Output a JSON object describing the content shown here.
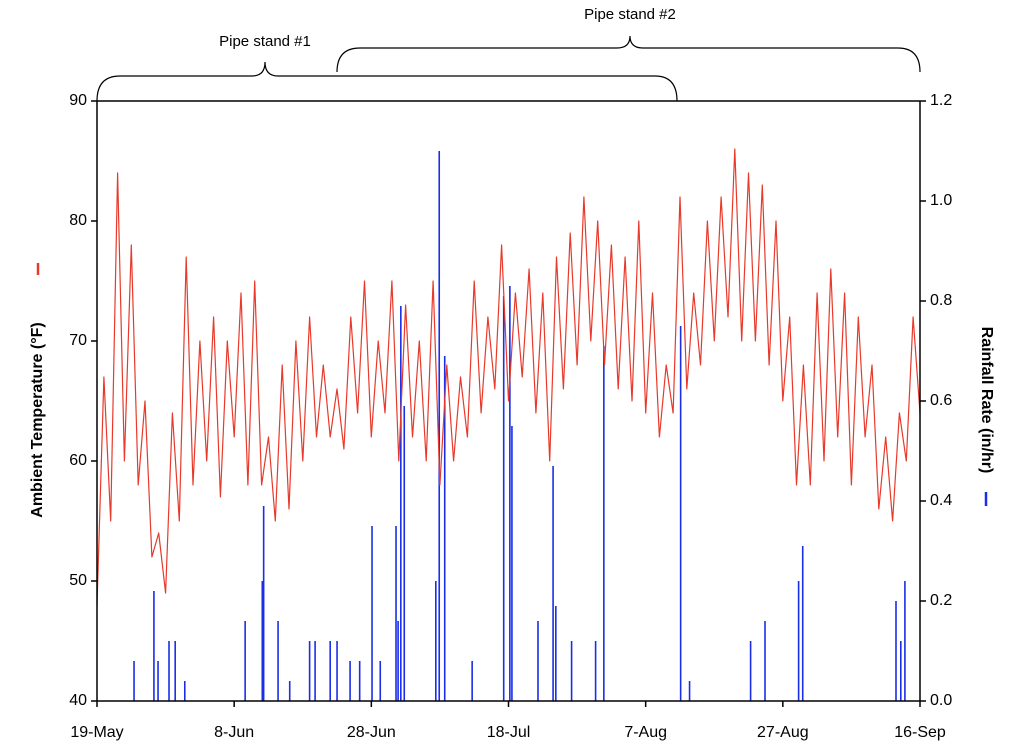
{
  "chart_data": {
    "type": "line",
    "annotations": [
      "Pipe stand #1",
      "Pipe stand #2"
    ],
    "ylabel": "Ambient Temperature (°F)",
    "y2label": "Rainfall Rate (in/hr)",
    "xlim": [
      0,
      120
    ],
    "xticks": [
      {
        "value": 0,
        "label": "19-May"
      },
      {
        "value": 20,
        "label": "8-Jun"
      },
      {
        "value": 40,
        "label": "28-Jun"
      },
      {
        "value": 60,
        "label": "18-Jul"
      },
      {
        "value": 80,
        "label": "7-Aug"
      },
      {
        "value": 100,
        "label": "27-Aug"
      },
      {
        "value": 120,
        "label": "16-Sep"
      }
    ],
    "ylim": [
      40,
      90
    ],
    "yticks": [
      40,
      50,
      60,
      70,
      80,
      90
    ],
    "y2lim": [
      0,
      1.2
    ],
    "y2ticks": [
      {
        "value": 0,
        "label": "0.0"
      },
      0.2,
      0.4,
      0.6,
      0.8,
      {
        "value": 1,
        "label": "1.0"
      },
      1.2
    ],
    "series": [
      {
        "name": "Ambient Temperature",
        "color": "#e8392a",
        "kind": "line",
        "x": [
          0,
          1,
          2,
          3,
          4,
          5,
          6,
          7,
          8,
          9,
          10,
          11,
          12,
          13,
          14,
          15,
          16,
          17,
          18,
          19,
          20,
          21,
          22,
          23,
          24,
          25,
          26,
          27,
          28,
          29,
          30,
          31,
          32,
          33,
          34,
          35,
          36,
          37,
          38,
          39,
          40,
          41,
          42,
          43,
          44,
          45,
          46,
          47,
          48,
          49,
          50,
          51,
          52,
          53,
          54,
          55,
          56,
          57,
          58,
          59,
          60,
          61,
          62,
          63,
          64,
          65,
          66,
          67,
          68,
          69,
          70,
          71,
          72,
          73,
          74,
          75,
          76,
          77,
          78,
          79,
          80,
          81,
          82,
          83,
          84,
          85,
          86,
          87,
          88,
          89,
          90,
          91,
          92,
          93,
          94,
          95,
          96,
          97,
          98,
          99,
          100,
          101,
          102,
          103,
          104,
          105,
          106,
          107,
          108,
          109,
          110,
          111,
          112,
          113,
          114,
          115,
          116,
          117,
          118,
          119,
          120
        ],
        "values": [
          48,
          67,
          55,
          84,
          60,
          78,
          58,
          65,
          52,
          54,
          49,
          64,
          55,
          77,
          58,
          70,
          60,
          72,
          57,
          70,
          62,
          74,
          58,
          75,
          58,
          62,
          55,
          68,
          56,
          70,
          60,
          72,
          62,
          68,
          62,
          66,
          61,
          72,
          64,
          75,
          62,
          70,
          64,
          75,
          60,
          73,
          62,
          70,
          60,
          75,
          58,
          68,
          60,
          67,
          62,
          75,
          64,
          72,
          66,
          78,
          65,
          74,
          67,
          76,
          64,
          74,
          60,
          77,
          66,
          79,
          68,
          82,
          70,
          80,
          68,
          78,
          66,
          77,
          65,
          80,
          64,
          74,
          62,
          68,
          64,
          82,
          66,
          74,
          68,
          80,
          70,
          82,
          72,
          86,
          70,
          84,
          70,
          83,
          68,
          80,
          65,
          72,
          58,
          68,
          58,
          74,
          60,
          76,
          62,
          74,
          58,
          72,
          62,
          68,
          56,
          62,
          55,
          64,
          60,
          72,
          64
        ]
      },
      {
        "name": "Rainfall Rate",
        "color": "#1a2ee8",
        "kind": "bar",
        "axis": "y2",
        "x": [
          5.4,
          8.3,
          8.9,
          10.5,
          11.4,
          12.8,
          21.6,
          24.1,
          24.3,
          26.4,
          28.1,
          31.0,
          31.8,
          34.0,
          35.0,
          36.9,
          38.3,
          40.1,
          41.3,
          43.6,
          43.9,
          44.3,
          44.8,
          49.4,
          49.9,
          50.7,
          54.7,
          59.3,
          60.2,
          60.5,
          64.3,
          66.5,
          66.9,
          69.2,
          72.7,
          73.9,
          85.1,
          86.4,
          95.3,
          97.4,
          102.3,
          102.9,
          116.5,
          117.2,
          117.8
        ],
        "values": [
          0.08,
          0.22,
          0.08,
          0.12,
          0.12,
          0.04,
          0.16,
          0.24,
          0.39,
          0.16,
          0.04,
          0.12,
          0.12,
          0.12,
          0.12,
          0.08,
          0.08,
          0.35,
          0.08,
          0.35,
          0.16,
          0.79,
          0.59,
          0.24,
          1.1,
          0.69,
          0.08,
          0.81,
          0.83,
          0.55,
          0.16,
          0.47,
          0.19,
          0.12,
          0.12,
          0.71,
          0.75,
          0.04,
          0.12,
          0.16,
          0.24,
          0.31,
          0.2,
          0.12,
          0.24
        ]
      }
    ]
  }
}
